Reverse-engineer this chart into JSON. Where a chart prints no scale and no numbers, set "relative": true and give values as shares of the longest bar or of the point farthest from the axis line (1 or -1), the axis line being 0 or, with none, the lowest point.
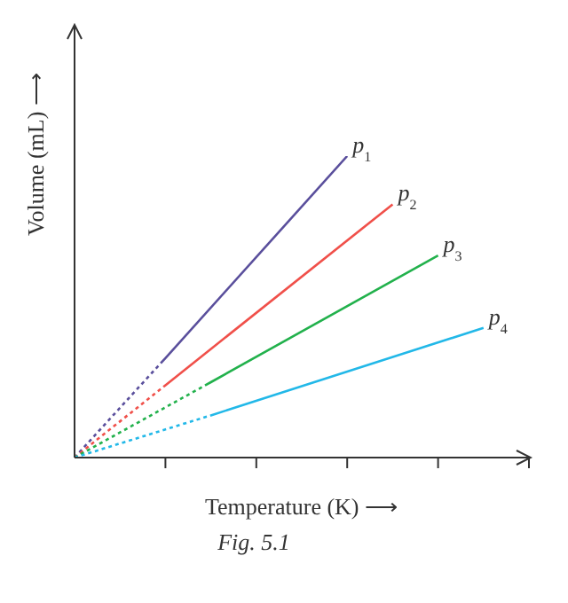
{
  "chart_data": {
    "type": "line",
    "relative": true,
    "xlabel": "Temperature (K) ⟶",
    "ylabel": "Volume (mL) ⟶",
    "annotations": [
      "Fig. 5.1"
    ],
    "categories": [
      null,
      null,
      null,
      null,
      null,
      null,
      null,
      null,
      null,
      null,
      null
    ],
    "grid": false,
    "legend": false,
    "marker": "none",
    "series": [
      {
        "name": "p$_{1}$",
        "color": "#5a4f9c",
        "line_style": "dotted",
        "values": [
          0,
          null,
          0.33,
          null,
          null,
          null,
          1,
          null,
          null,
          null,
          null
        ]
      },
      {
        "name": "p$_{2}$",
        "color": "#f0504a",
        "line_style": "dotted",
        "values": [
          0,
          null,
          0.24,
          null,
          null,
          null,
          null,
          0.84,
          null,
          null,
          null
        ]
      },
      {
        "name": "p$_{3}$",
        "color": "#22b14c",
        "line_style": "dotted",
        "values": [
          0,
          null,
          null,
          0.25,
          null,
          null,
          null,
          null,
          0.67,
          null,
          null
        ]
      },
      {
        "name": "p$_{4}$",
        "color": "#22b8e8",
        "line_style": "dotted",
        "values": [
          0,
          null,
          null,
          0.14,
          null,
          null,
          null,
          null,
          null,
          0.43,
          null
        ]
      }
    ]
  }
}
